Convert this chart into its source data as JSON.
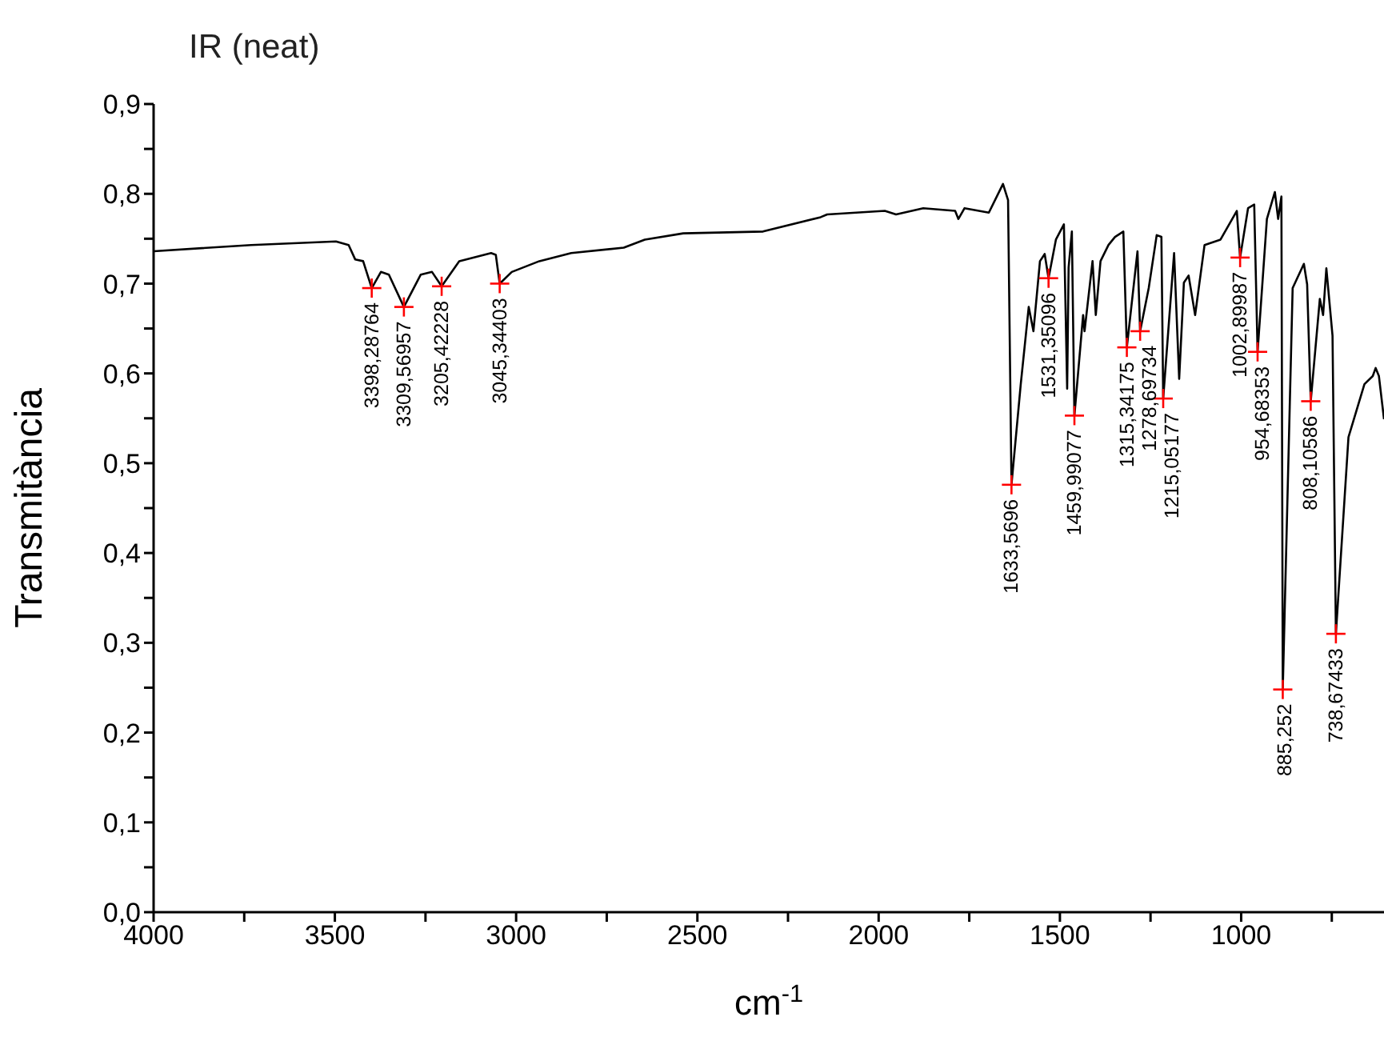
{
  "chart_data": {
    "type": "line",
    "title": "IR (neat)",
    "xlabel": "cm$^{-1}$",
    "ylabel": "Transmitància",
    "xlim": [
      4000,
      606
    ],
    "ylim": [
      0,
      0.9
    ],
    "xticks": [
      4000,
      {
        "value": 3750,
        "label": null
      },
      3500,
      {
        "value": 3250,
        "label": null
      },
      3000,
      {
        "value": 2750,
        "label": null
      },
      2500,
      {
        "value": 2250,
        "label": null
      },
      2000,
      {
        "value": 1750,
        "label": null
      },
      1500,
      {
        "value": 1250,
        "label": null
      },
      1000,
      {
        "value": 750,
        "label": null
      }
    ],
    "yticks": [
      {
        "value": 0,
        "label": "0,0"
      },
      {
        "value": 0.05,
        "label": null
      },
      {
        "value": 0.1,
        "label": "0,1"
      },
      {
        "value": 0.15,
        "label": null
      },
      {
        "value": 0.2,
        "label": "0,2"
      },
      {
        "value": 0.25,
        "label": null
      },
      {
        "value": 0.3,
        "label": "0,3"
      },
      {
        "value": 0.35,
        "label": null
      },
      {
        "value": 0.4,
        "label": "0,4"
      },
      {
        "value": 0.45,
        "label": null
      },
      {
        "value": 0.5,
        "label": "0,5"
      },
      {
        "value": 0.55,
        "label": null
      },
      {
        "value": 0.6,
        "label": "0,6"
      },
      {
        "value": 0.65,
        "label": null
      },
      {
        "value": 0.7,
        "label": "0,7"
      },
      {
        "value": 0.75,
        "label": null
      },
      {
        "value": 0.8,
        "label": "0,8"
      },
      {
        "value": 0.85,
        "label": null
      },
      {
        "value": 0.9,
        "label": "0,9"
      }
    ],
    "grid": false,
    "legend": false,
    "series": [
      {
        "color": "#000000",
        "marker": "none",
        "line_style": "solid",
        "x": [
          4000,
          3731,
          3497,
          3462,
          3444,
          3422,
          3398.28764,
          3373,
          3351,
          3309.56957,
          3263,
          3232,
          3205.42228,
          3157,
          3069,
          3056,
          3045.34403,
          3012,
          2936,
          2848,
          2703,
          2645,
          2539,
          2319,
          2160,
          2142,
          1983,
          1952,
          1877,
          1789,
          1780,
          1763,
          1696,
          1657,
          1643,
          1633.5696,
          1608,
          1586,
          1573,
          1555,
          1542,
          1531.35096,
          1511,
          1489,
          1480,
          1476,
          1467,
          1459.99077,
          1436,
          1432,
          1410,
          1401,
          1388,
          1366,
          1348,
          1325,
          1315.34175,
          1286,
          1278.69734,
          1255,
          1233,
          1220,
          1215.05177,
          1185,
          1171,
          1158,
          1145,
          1127,
          1101,
          1057,
          1012,
          1002.89987,
          981,
          964,
          954.68353,
          929,
          907,
          898,
          889,
          885.252,
          858,
          827,
          818,
          808.10586,
          783,
          774,
          765,
          748,
          738.67433,
          704,
          660,
          637,
          629,
          620,
          606
        ],
        "values": [
          0.736,
          0.743,
          0.747,
          0.743,
          0.727,
          0.725,
          0.695,
          0.713,
          0.71,
          0.674,
          0.71,
          0.713,
          0.697,
          0.725,
          0.734,
          0.732,
          0.7,
          0.713,
          0.725,
          0.734,
          0.74,
          0.749,
          0.756,
          0.758,
          0.774,
          0.777,
          0.781,
          0.777,
          0.784,
          0.781,
          0.772,
          0.784,
          0.779,
          0.811,
          0.793,
          0.476,
          0.588,
          0.674,
          0.647,
          0.725,
          0.733,
          0.706,
          0.749,
          0.766,
          0.583,
          0.718,
          0.758,
          0.553,
          0.665,
          0.647,
          0.725,
          0.665,
          0.725,
          0.743,
          0.752,
          0.758,
          0.629,
          0.736,
          0.647,
          0.695,
          0.754,
          0.752,
          0.572,
          0.734,
          0.594,
          0.701,
          0.709,
          0.665,
          0.743,
          0.749,
          0.781,
          0.729,
          0.784,
          0.788,
          0.624,
          0.772,
          0.802,
          0.772,
          0.797,
          0.248,
          0.695,
          0.722,
          0.699,
          0.569,
          0.683,
          0.665,
          0.717,
          0.642,
          0.31,
          0.529,
          0.588,
          0.597,
          0.606,
          0.597,
          0.549
        ]
      },
      {
        "type": "scatter",
        "color": "#ff0000",
        "marker": "cross",
        "x": [
          3398.28764,
          3309.56957,
          3205.42228,
          3045.34403,
          1633.5696,
          1531.35096,
          1459.99077,
          1315.34175,
          1278.69734,
          1215.05177,
          1002.89987,
          954.68353,
          885.252,
          808.10586,
          738.67433
        ],
        "values": [
          0.695,
          0.674,
          0.697,
          0.7,
          0.476,
          0.706,
          0.553,
          0.629,
          0.647,
          0.572,
          0.729,
          0.624,
          0.248,
          0.569,
          0.31
        ]
      }
    ],
    "annotations": [
      {
        "text": "3398,28764",
        "x": 3398.28764,
        "y": 0.695
      },
      {
        "text": "3309,56957",
        "x": 3309.56957,
        "y": 0.674
      },
      {
        "text": "3205,42228",
        "x": 3205.42228,
        "y": 0.697
      },
      {
        "text": "3045,34403",
        "x": 3045.34403,
        "y": 0.7
      },
      {
        "text": "1633,5696",
        "x": 1633.5696,
        "y": 0.476
      },
      {
        "text": "1531,35096",
        "x": 1531.35096,
        "y": 0.706
      },
      {
        "text": "1459,99077",
        "x": 1459.99077,
        "y": 0.553
      },
      {
        "text": "1315,34175",
        "x": 1315.34175,
        "y": 0.629
      },
      {
        "text": "1278,69734",
        "x": 1278.69734,
        "y": 0.647
      },
      {
        "text": "1215,05177",
        "x": 1215.05177,
        "y": 0.572
      },
      {
        "text": "1002,89987",
        "x": 1002.89987,
        "y": 0.729
      },
      {
        "text": "954,68353",
        "x": 954.68353,
        "y": 0.624
      },
      {
        "text": "885,252",
        "x": 885.252,
        "y": 0.248
      },
      {
        "text": "808,10586",
        "x": 808.10586,
        "y": 0.569
      },
      {
        "text": "738,67433",
        "x": 738.67433,
        "y": 0.31
      }
    ]
  }
}
